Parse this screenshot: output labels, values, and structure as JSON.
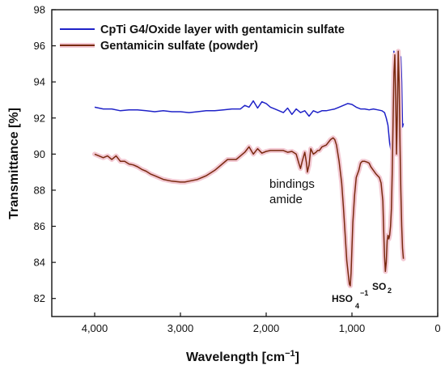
{
  "chart_data": {
    "type": "line",
    "xlabel": "Wavelength [cm",
    "xlabel_sup": "−1",
    "xlabel_end": "]",
    "ylabel": "Transmittance [%]",
    "xlim": [
      4500,
      0
    ],
    "ylim": [
      81,
      98
    ],
    "x_ticks": [
      4000,
      3000,
      2000,
      1000,
      0
    ],
    "x_tick_labels": [
      "4,000",
      "3,000",
      "2,000",
      "1,000",
      "0"
    ],
    "y_ticks": [
      82,
      84,
      86,
      88,
      90,
      92,
      94,
      96,
      98
    ],
    "y_tick_labels": [
      "82",
      "84",
      "86",
      "88",
      "90",
      "92",
      "94",
      "96",
      "98"
    ],
    "legend_position": "top-left",
    "series": [
      {
        "name": "CpTi G4/Oxide layer with gentamicin sulfate",
        "color": "#1f22c8",
        "x": [
          4000,
          3900,
          3800,
          3700,
          3600,
          3500,
          3400,
          3300,
          3200,
          3100,
          3000,
          2900,
          2800,
          2700,
          2600,
          2500,
          2400,
          2300,
          2250,
          2200,
          2150,
          2100,
          2050,
          2000,
          1950,
          1900,
          1850,
          1800,
          1750,
          1700,
          1650,
          1600,
          1550,
          1500,
          1450,
          1400,
          1350,
          1300,
          1250,
          1200,
          1150,
          1100,
          1050,
          1000,
          950,
          900,
          850,
          800,
          750,
          700,
          650,
          620,
          600,
          580,
          560,
          545,
          530,
          520,
          510,
          500,
          490,
          480,
          470,
          460,
          450,
          440,
          430,
          420,
          410,
          400
        ],
        "y": [
          92.6,
          92.5,
          92.5,
          92.4,
          92.45,
          92.45,
          92.4,
          92.35,
          92.4,
          92.35,
          92.35,
          92.3,
          92.35,
          92.4,
          92.4,
          92.45,
          92.5,
          92.5,
          92.7,
          92.6,
          92.95,
          92.55,
          92.9,
          92.8,
          92.6,
          92.5,
          92.4,
          92.3,
          92.55,
          92.2,
          92.5,
          92.3,
          92.4,
          92.1,
          92.4,
          92.3,
          92.4,
          92.4,
          92.45,
          92.5,
          92.6,
          92.7,
          92.8,
          92.75,
          92.6,
          92.5,
          92.5,
          92.45,
          92.5,
          92.45,
          92.4,
          92.3,
          92.0,
          91.6,
          90.6,
          90.2,
          91.2,
          93.5,
          95.7,
          94.0,
          91.0,
          94.5,
          95.3,
          93.0,
          90.5,
          93.5,
          95.4,
          94.0,
          91.5,
          91.7
        ]
      },
      {
        "name": "Gentamicin sulfate (powder)",
        "color": "#7a2a10",
        "x": [
          4000,
          3950,
          3900,
          3850,
          3800,
          3750,
          3700,
          3650,
          3600,
          3550,
          3500,
          3450,
          3400,
          3350,
          3300,
          3200,
          3100,
          3000,
          2950,
          2900,
          2800,
          2700,
          2600,
          2500,
          2450,
          2400,
          2350,
          2300,
          2250,
          2200,
          2150,
          2100,
          2050,
          2000,
          1950,
          1900,
          1850,
          1800,
          1750,
          1700,
          1650,
          1620,
          1600,
          1580,
          1550,
          1530,
          1520,
          1500,
          1480,
          1450,
          1420,
          1400,
          1380,
          1350,
          1300,
          1250,
          1220,
          1200,
          1180,
          1150,
          1120,
          1100,
          1080,
          1060,
          1040,
          1030,
          1020,
          1010,
          1000,
          990,
          970,
          950,
          920,
          900,
          880,
          850,
          820,
          800,
          780,
          750,
          720,
          700,
          680,
          660,
          640,
          630,
          620,
          610,
          600,
          590,
          580,
          570,
          560,
          550,
          540,
          530,
          520,
          510,
          500,
          490,
          480,
          470,
          460,
          450,
          440,
          430,
          420,
          410,
          400
        ],
        "y": [
          90.0,
          89.9,
          89.8,
          89.9,
          89.7,
          89.9,
          89.6,
          89.6,
          89.45,
          89.4,
          89.3,
          89.15,
          89.05,
          88.9,
          88.8,
          88.6,
          88.5,
          88.45,
          88.45,
          88.5,
          88.6,
          88.8,
          89.1,
          89.5,
          89.7,
          89.7,
          89.7,
          89.9,
          90.1,
          90.4,
          90.0,
          90.3,
          90.05,
          90.15,
          90.2,
          90.2,
          90.2,
          90.2,
          90.1,
          90.15,
          90.0,
          89.5,
          89.2,
          89.6,
          90.1,
          89.5,
          89.0,
          89.4,
          90.3,
          90.0,
          90.1,
          90.2,
          90.2,
          90.4,
          90.5,
          90.8,
          90.9,
          90.8,
          90.5,
          89.6,
          88.4,
          87.1,
          85.6,
          84.1,
          83.2,
          82.8,
          82.7,
          83.4,
          84.8,
          86.2,
          87.7,
          88.7,
          89.1,
          89.5,
          89.6,
          89.6,
          89.55,
          89.5,
          89.3,
          89.1,
          88.9,
          88.8,
          88.7,
          88.4,
          87.4,
          85.8,
          84.3,
          83.5,
          84.0,
          85.2,
          85.5,
          85.3,
          85.5,
          86.0,
          87.0,
          89.0,
          92.0,
          94.5,
          95.5,
          93.0,
          90.0,
          92.5,
          95.7,
          94.0,
          90.5,
          88.0,
          86.0,
          84.8,
          84.2
        ]
      }
    ],
    "annotations": {
      "amide_line1": "bindings",
      "amide_line2": "amide",
      "hso_main": "HSO",
      "hso_sub": "4",
      "hso_sup": "−1",
      "so_main": "SO",
      "so_sub": "2"
    }
  }
}
